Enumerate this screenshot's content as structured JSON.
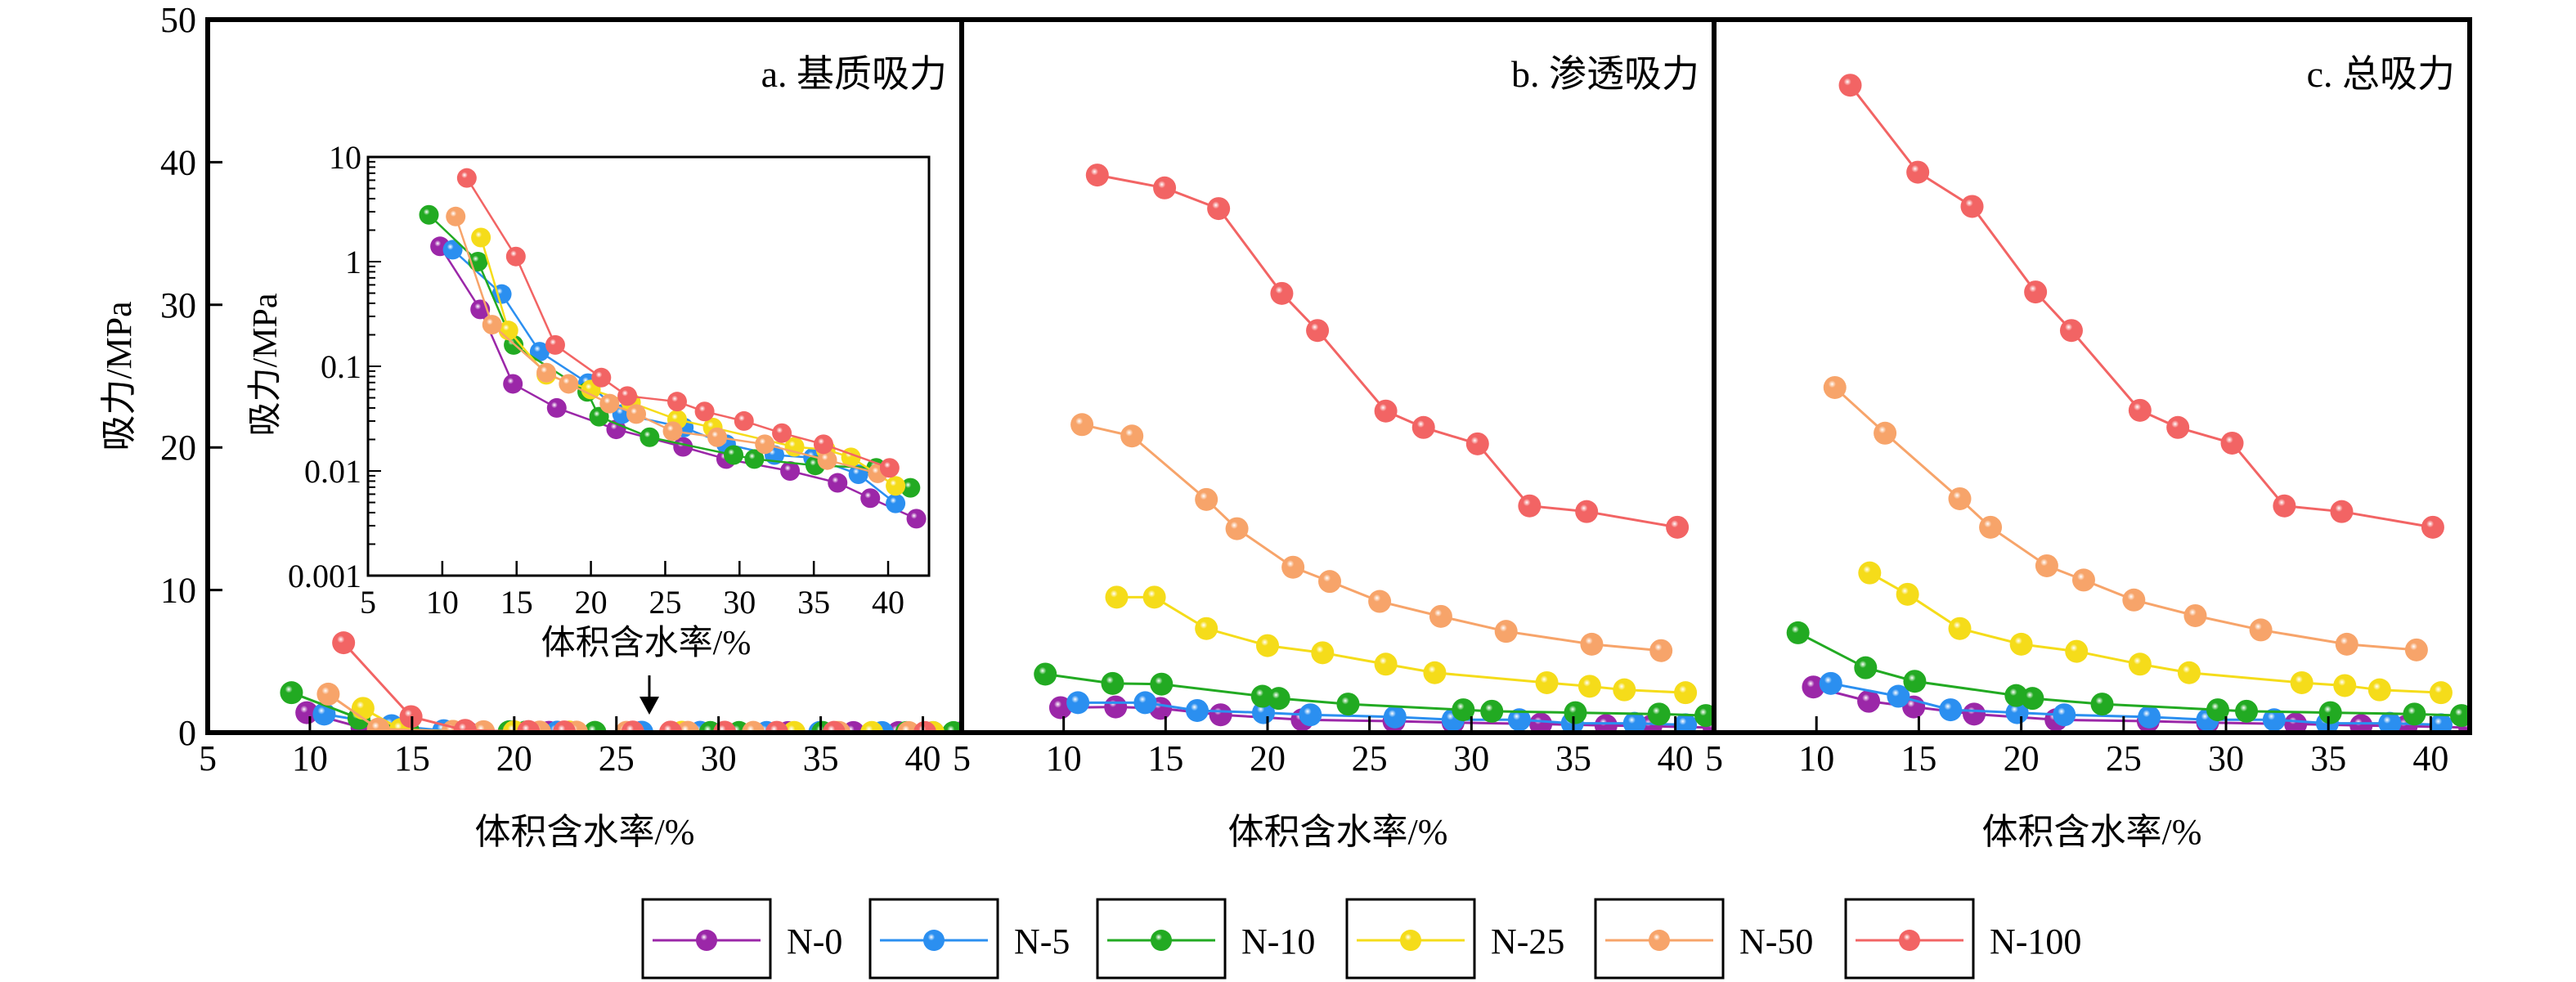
{
  "chart_data": {
    "type": "line",
    "ylabel": "吸力/MPa",
    "y_ticks": [
      0,
      10,
      20,
      30,
      40,
      50
    ],
    "x_ticks": [
      5,
      10,
      15,
      20,
      25,
      30,
      35,
      40
    ],
    "series_meta": [
      {
        "name": "N-0",
        "color": "#9b27a8"
      },
      {
        "name": "N-5",
        "color": "#2b8ff0"
      },
      {
        "name": "N-10",
        "color": "#22aa22"
      },
      {
        "name": "N-25",
        "color": "#f5dc1a"
      },
      {
        "name": "N-50",
        "color": "#f7a46a"
      },
      {
        "name": "N-100",
        "color": "#f26464"
      }
    ],
    "x": {
      "N-0": [
        9.85,
        12.55,
        14.75,
        17.7,
        21.7,
        26.2,
        29.1,
        33.4,
        36.6,
        38.8,
        41.9
      ],
      "N-5": [
        10.7,
        14.0,
        16.55,
        19.8,
        22.1,
        26.25,
        29.1,
        32.35,
        34.95,
        38.0,
        40.5
      ],
      "N-10": [
        9.1,
        12.4,
        14.8,
        19.75,
        20.55,
        23.95,
        29.6,
        31.0,
        35.1,
        39.2,
        41.5
      ],
      "N-25": [
        12.6,
        14.45,
        17.0,
        20.0,
        22.7,
        25.8,
        28.2,
        33.7,
        35.8,
        37.5,
        40.5
      ],
      "N-50": [
        10.9,
        13.35,
        17.0,
        18.5,
        21.25,
        23.05,
        25.5,
        28.5,
        31.7,
        35.9,
        39.3
      ],
      "N-100": [
        11.65,
        14.95,
        17.6,
        20.7,
        22.45,
        25.8,
        27.65,
        30.3,
        32.85,
        35.65,
        40.1
      ]
    },
    "panels": [
      {
        "title": "a. 基质吸力",
        "xlabel": "体积含水率/%",
        "xlim": [
          5,
          41.9
        ],
        "ylim": [
          0,
          50
        ],
        "values": {
          "N-0": [
            1.4,
            0.35,
            0.068,
            0.04,
            0.025,
            0.017,
            0.013,
            0.01,
            0.0077,
            0.0055,
            0.0035
          ],
          "N-5": [
            1.3,
            0.49,
            0.138,
            0.069,
            0.035,
            0.026,
            0.018,
            0.0142,
            0.0134,
            0.0093,
            0.0049
          ],
          "N-10": [
            2.8,
            1.0,
            0.16,
            0.057,
            0.033,
            0.021,
            0.0142,
            0.013,
            0.0113,
            0.0107,
            0.0069
          ],
          "N-25": [
            1.7,
            0.22,
            0.083,
            0.06,
            0.045,
            0.031,
            0.026,
            0.017,
            0.016,
            0.0135,
            0.0072
          ],
          "N-50": [
            2.7,
            0.25,
            0.087,
            0.068,
            0.044,
            0.035,
            0.024,
            0.021,
            0.018,
            0.0127,
            0.0095
          ],
          "N-100": [
            6.3,
            1.12,
            0.16,
            0.078,
            0.052,
            0.046,
            0.037,
            0.03,
            0.023,
            0.018,
            0.0107
          ]
        }
      },
      {
        "title": "b. 渗透吸力",
        "xlabel": "体积含水率/%",
        "xlim": [
          5,
          41.9
        ],
        "ylim": [
          0,
          50
        ],
        "values": {
          "N-0": [
            1.75,
            1.8,
            1.7,
            1.25,
            0.9,
            0.8,
            0.7,
            0.6,
            0.5,
            0.45,
            0.35
          ],
          "N-5": [
            2.1,
            2.1,
            1.55,
            1.4,
            1.25,
            1.1,
            0.9,
            0.9,
            0.65,
            0.65,
            0.55
          ],
          "N-10": [
            4.1,
            3.45,
            3.4,
            2.55,
            2.4,
            2.0,
            1.6,
            1.5,
            1.4,
            1.3,
            1.2
          ],
          "N-25": [
            9.5,
            9.5,
            7.3,
            6.1,
            5.6,
            4.8,
            4.2,
            3.5,
            3.25,
            3.0,
            2.8
          ],
          "N-50": [
            21.6,
            20.8,
            16.35,
            14.3,
            11.6,
            10.6,
            9.2,
            8.15,
            7.1,
            6.2,
            5.75
          ],
          "N-100": [
            39.1,
            38.2,
            36.75,
            30.8,
            28.2,
            22.55,
            21.4,
            20.25,
            15.9,
            15.5,
            14.4
          ]
        }
      },
      {
        "title": "c. 总吸力",
        "xlabel": "体积含水率/%",
        "xlim": [
          5,
          41.9
        ],
        "ylim": [
          0,
          50
        ],
        "values": {
          "N-0": [
            3.2,
            2.2,
            1.8,
            1.3,
            0.9,
            0.8,
            0.7,
            0.6,
            0.5,
            0.45,
            0.35
          ],
          "N-5": [
            3.45,
            2.55,
            1.6,
            1.4,
            1.25,
            1.1,
            0.9,
            0.9,
            0.65,
            0.65,
            0.55
          ],
          "N-10": [
            7.0,
            4.55,
            3.6,
            2.6,
            2.4,
            2.0,
            1.6,
            1.5,
            1.4,
            1.3,
            1.2
          ],
          "N-25": [
            11.2,
            9.7,
            7.3,
            6.2,
            5.7,
            4.8,
            4.2,
            3.5,
            3.3,
            3.0,
            2.8
          ],
          "N-50": [
            24.2,
            21.0,
            16.4,
            14.4,
            11.7,
            10.7,
            9.3,
            8.2,
            7.2,
            6.2,
            5.8
          ],
          "N-100": [
            45.4,
            39.3,
            36.9,
            30.9,
            28.2,
            22.6,
            21.4,
            20.3,
            15.9,
            15.5,
            14.4
          ]
        }
      }
    ],
    "inset": {
      "of_panel": "a",
      "yscale": "log",
      "xlim": [
        5,
        42.75
      ],
      "ylim": [
        0.001,
        10
      ],
      "ylabel": "吸力/MPa",
      "xlabel": "体积含水率/%",
      "y_tick_labels": [
        "0.001",
        "0.01",
        "0.1",
        "1",
        "10"
      ],
      "x_ticks": [
        5,
        10,
        15,
        20,
        25,
        30,
        35,
        40
      ]
    },
    "legend": {
      "placement": "bottom",
      "entries": [
        "N-0",
        "N-5",
        "N-10",
        "N-25",
        "N-50",
        "N-100"
      ]
    }
  }
}
